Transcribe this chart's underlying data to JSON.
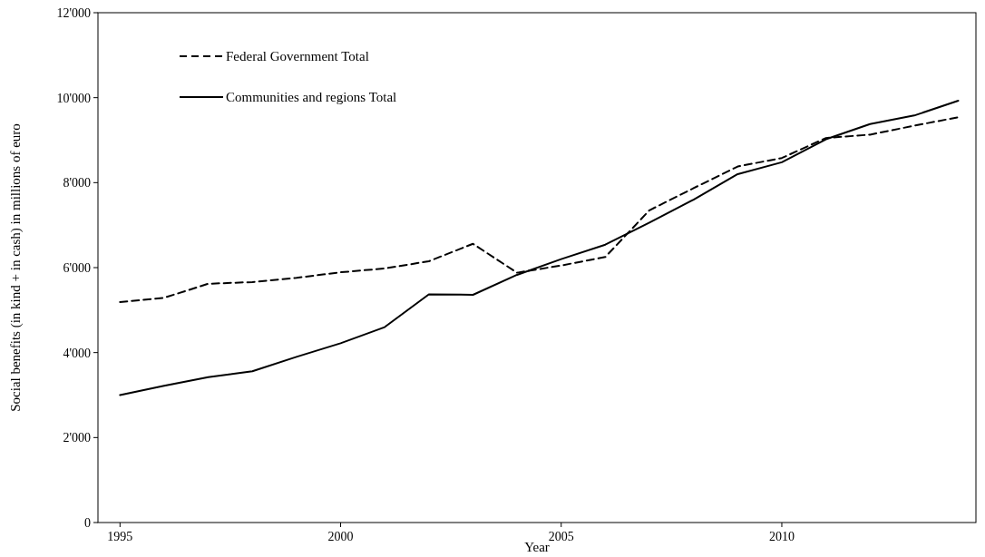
{
  "chart_data": {
    "type": "line",
    "xlabel": "Year",
    "ylabel": "Social benefits (in kind + in cash) in millions of euro",
    "x": [
      1995,
      1996,
      1997,
      1998,
      1999,
      2000,
      2001,
      2002,
      2003,
      2004,
      2005,
      2006,
      2007,
      2008,
      2009,
      2010,
      2011,
      2012,
      2013,
      2014
    ],
    "series": [
      {
        "name": "Federal Government Total",
        "color": "#000000",
        "line_style": "dashed",
        "values": [
          5190,
          5290,
          5620,
          5660,
          5760,
          5890,
          5980,
          6150,
          6560,
          5880,
          6050,
          6250,
          7350,
          7870,
          8380,
          8580,
          9050,
          9130,
          9340,
          9540
        ]
      },
      {
        "name": "Communities and regions Total",
        "color": "#000000",
        "line_style": "solid",
        "values": [
          3000,
          3220,
          3420,
          3560,
          3900,
          4220,
          4600,
          5370,
          5360,
          5830,
          6200,
          6540,
          7060,
          7600,
          8200,
          8480,
          9020,
          9380,
          9580,
          9930
        ]
      }
    ],
    "xlim": [
      1994.5,
      2014.4
    ],
    "xticks": [
      1995,
      2000,
      2005,
      2010
    ],
    "ylim": [
      0,
      12000
    ],
    "yticks": [
      0,
      {
        "value": 2000,
        "label": "2'000"
      },
      {
        "value": 4000,
        "label": "4'000"
      },
      {
        "value": 6000,
        "label": "6'000"
      },
      {
        "value": 8000,
        "label": "8'000"
      },
      {
        "value": 10000,
        "label": "10'000"
      },
      {
        "value": 12000,
        "label": "12'000"
      }
    ],
    "legend": "top left",
    "grid": false,
    "marker": "none"
  }
}
